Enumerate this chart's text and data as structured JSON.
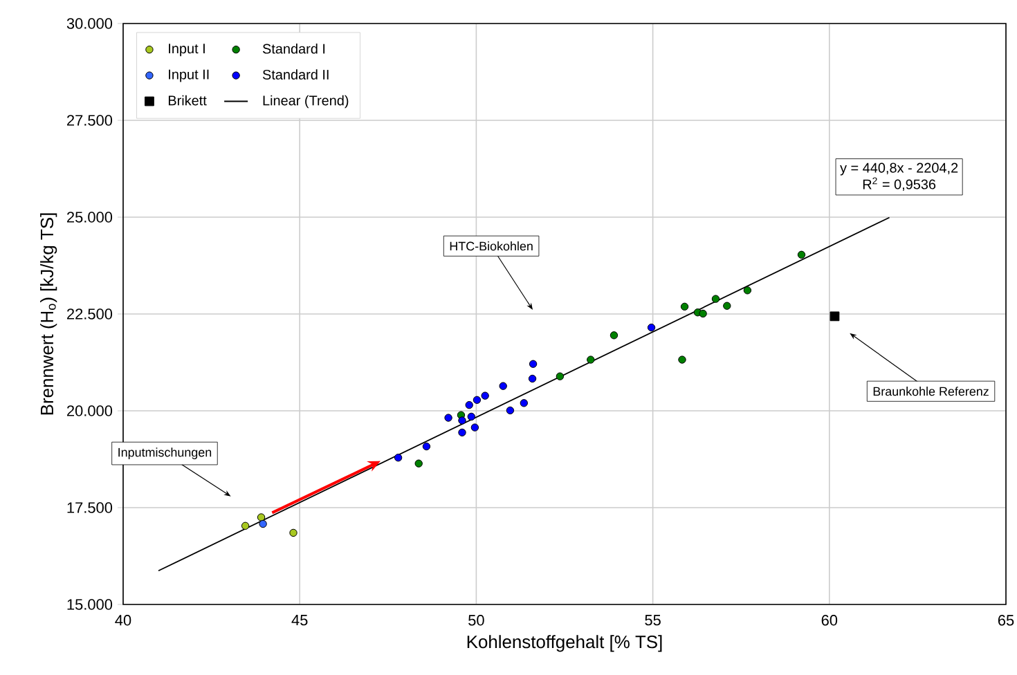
{
  "chart_data": {
    "type": "scatter",
    "xlabel": "Kohlenstoffgehalt [% TS]",
    "ylabel": "Brennwert (H$_{o}$) [kJ/kg TS]",
    "xlim": [
      40,
      65
    ],
    "xticks": [
      40,
      45,
      50,
      55,
      60,
      65
    ],
    "ylim": [
      15000,
      30000
    ],
    "yticks": [
      {
        "value": 15000,
        "label": "15.000"
      },
      {
        "value": 17500,
        "label": "17.500"
      },
      {
        "value": 20000,
        "label": "20.000"
      },
      {
        "value": 22500,
        "label": "22.500"
      },
      {
        "value": 25000,
        "label": "25.000"
      },
      {
        "value": 27500,
        "label": "27.500"
      },
      {
        "value": 30000,
        "label": "30.000"
      }
    ],
    "grid": true,
    "legend": "top left",
    "series": [
      {
        "name": "Input I",
        "color": "#a8c820",
        "marker": "circle",
        "x": [
          43.46,
          43.91,
          44.82
        ],
        "values": [
          17030,
          17250,
          16850
        ]
      },
      {
        "name": "Standard I",
        "color": "#008000",
        "marker": "circle",
        "x": [
          48.37,
          49.57,
          52.37,
          53.24,
          53.9,
          55.83,
          55.9,
          56.27,
          56.42,
          56.78,
          57.1,
          57.68,
          59.21
        ],
        "values": [
          18640,
          19890,
          20890,
          21320,
          21950,
          21320,
          22690,
          22540,
          22510,
          22890,
          22710,
          23110,
          24030
        ]
      },
      {
        "name": "Input II",
        "color": "#3366ff",
        "marker": "circle",
        "x": [
          43.96
        ],
        "values": [
          17080
        ]
      },
      {
        "name": "Standard II",
        "color": "#0000ff",
        "marker": "circle",
        "x": [
          47.79,
          48.59,
          49.21,
          49.6,
          49.6,
          49.8,
          49.86,
          49.96,
          50.02,
          50.25,
          50.76,
          50.96,
          51.35,
          51.59,
          51.61,
          54.96
        ],
        "values": [
          18790,
          19080,
          19820,
          19750,
          19440,
          20150,
          19850,
          19570,
          20280,
          20390,
          20640,
          20010,
          20200,
          20830,
          21210,
          22150
        ]
      },
      {
        "name": "Brikett",
        "color": "#000000",
        "marker": "square",
        "x": [
          60.15
        ],
        "values": [
          22440
        ]
      },
      {
        "name": "Linear (Trend)",
        "type": "line",
        "color": "#000000",
        "marker": "none",
        "line_style": "solid",
        "x": [
          41.0,
          61.7
        ],
        "values": [
          15870,
          24990
        ]
      }
    ],
    "annotations": [
      "HTC-Biokohlen",
      "Inputmischungen",
      "Braunkohle Referenz",
      "y = 440,8x - 2204,2",
      "R$^{2}$ = 0,9536"
    ]
  }
}
